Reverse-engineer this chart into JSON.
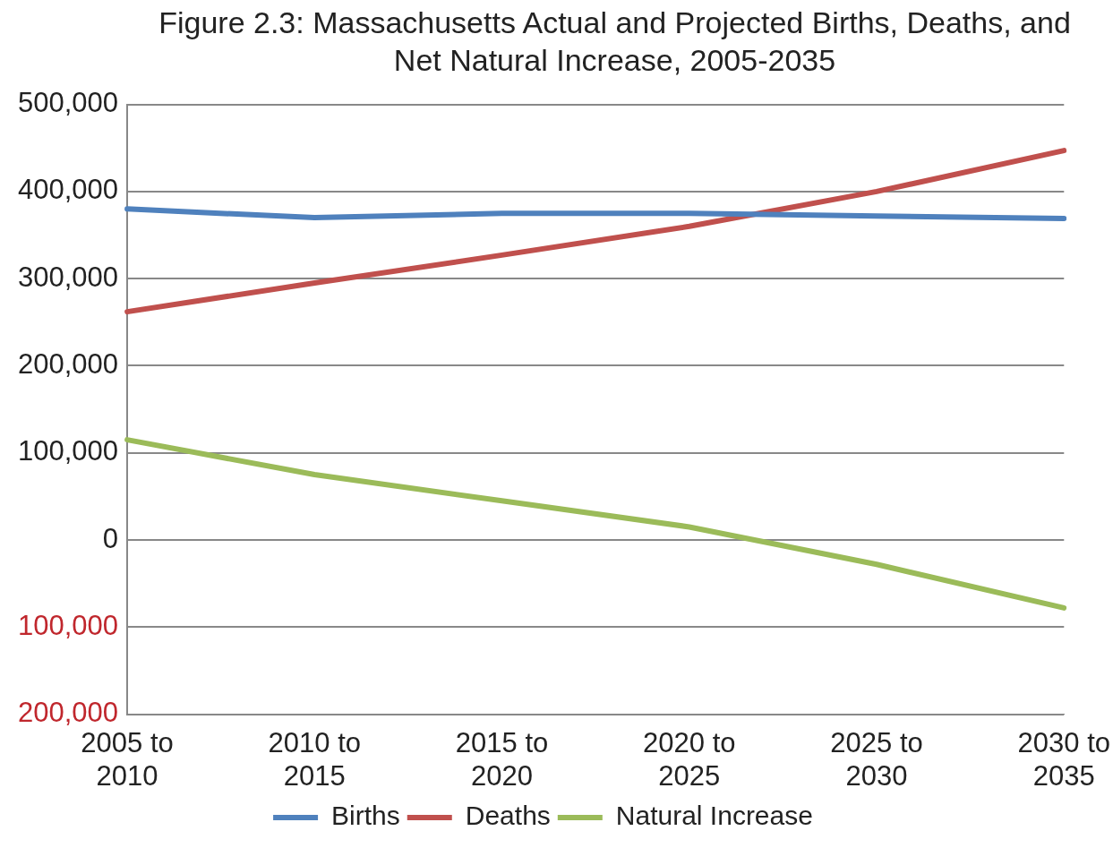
{
  "chart_data": {
    "type": "line",
    "title": "Figure 2.3: Massachusetts Actual and Projected Births, Deaths, and Net Natural Increase, 2005-2035",
    "categories": [
      "2005 to 2010",
      "2010 to 2015",
      "2015 to 2020",
      "2020 to 2025",
      "2025 to 2030",
      "2030 to 2035"
    ],
    "series": [
      {
        "name": "Births",
        "color": "#4f81bd",
        "values": [
          380000,
          370000,
          375000,
          375000,
          372000,
          369000
        ]
      },
      {
        "name": "Deaths",
        "color": "#c0504d",
        "values": [
          262000,
          295000,
          327000,
          360000,
          400000,
          447000
        ]
      },
      {
        "name": "Natural Increase",
        "color": "#9bbb59",
        "values": [
          115000,
          75000,
          45000,
          15000,
          -28000,
          -78000
        ]
      }
    ],
    "ylim": [
      -200000,
      500000
    ],
    "yticks": [
      {
        "value": -200000,
        "label": "200,000"
      },
      {
        "value": -100000,
        "label": "100,000"
      },
      0,
      {
        "value": 100000,
        "label": "100,000"
      },
      {
        "value": 200000,
        "label": "200,000"
      },
      {
        "value": 300000,
        "label": "300,000"
      },
      {
        "value": 400000,
        "label": "400,000"
      },
      {
        "value": 500000,
        "label": "500,000"
      }
    ],
    "grid": "y",
    "legend": "bottom",
    "marker": "none",
    "line_style": "solid"
  }
}
